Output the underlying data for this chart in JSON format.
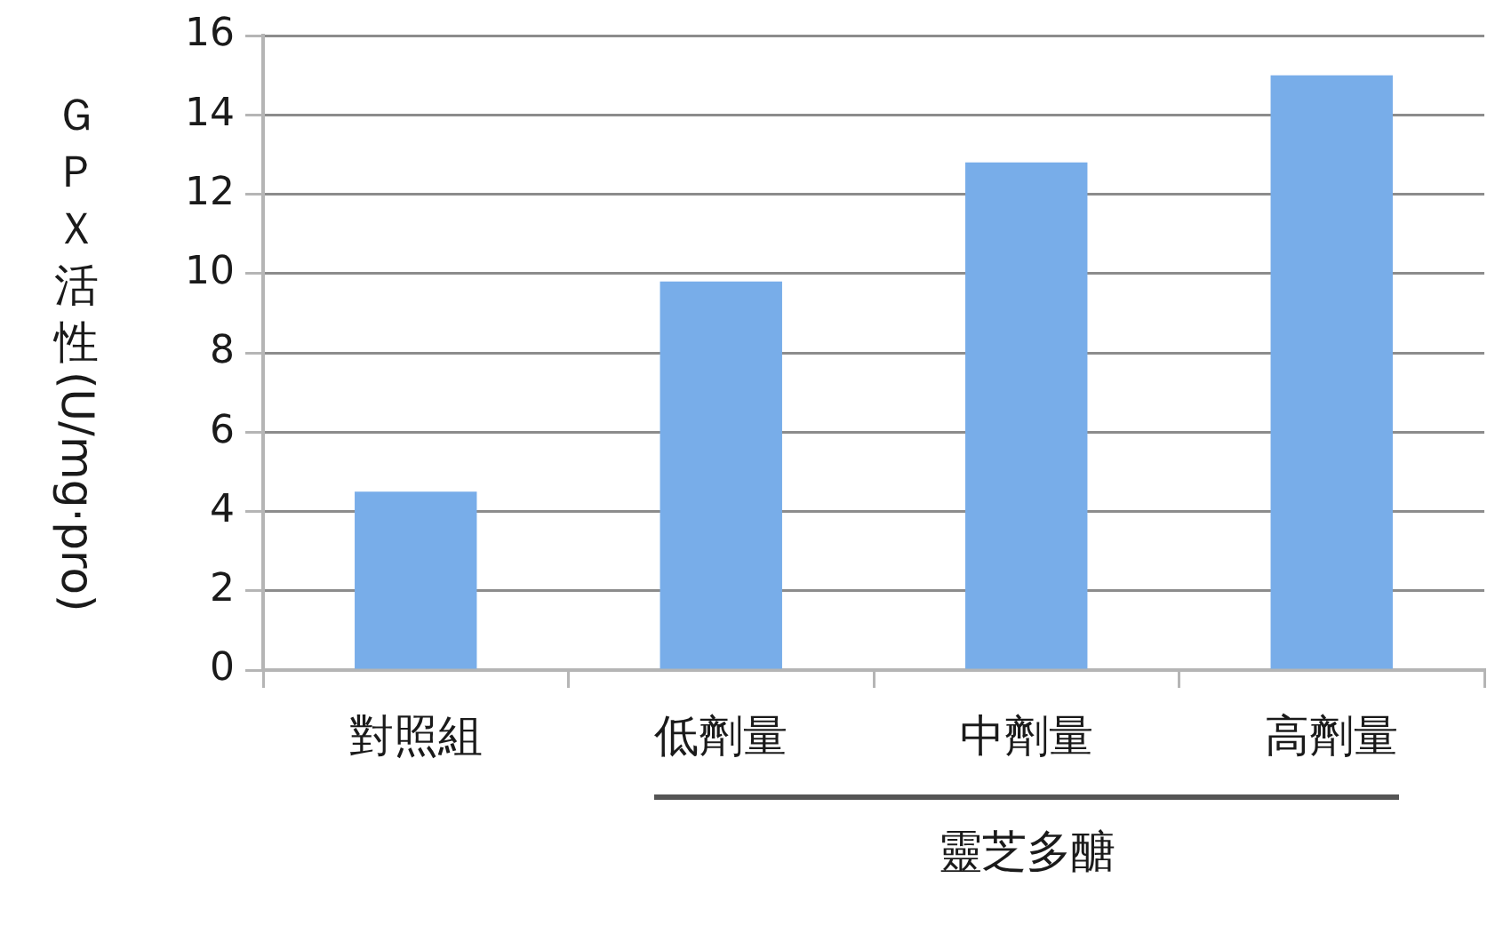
{
  "chart_data": {
    "type": "bar",
    "ylabel": "ＧＰＸ活性(U/mg·pro)",
    "categories": [
      "對照組",
      "低劑量",
      "中劑量",
      "高劑量"
    ],
    "values": [
      4.5,
      9.8,
      12.8,
      15
    ],
    "color": "#78ade9",
    "ylim": [
      0,
      16
    ],
    "yticks": [
      0,
      2,
      4,
      6,
      8,
      10,
      12,
      14,
      16
    ],
    "grid": "y",
    "annotations": [
      "靈芝多醣"
    ]
  }
}
